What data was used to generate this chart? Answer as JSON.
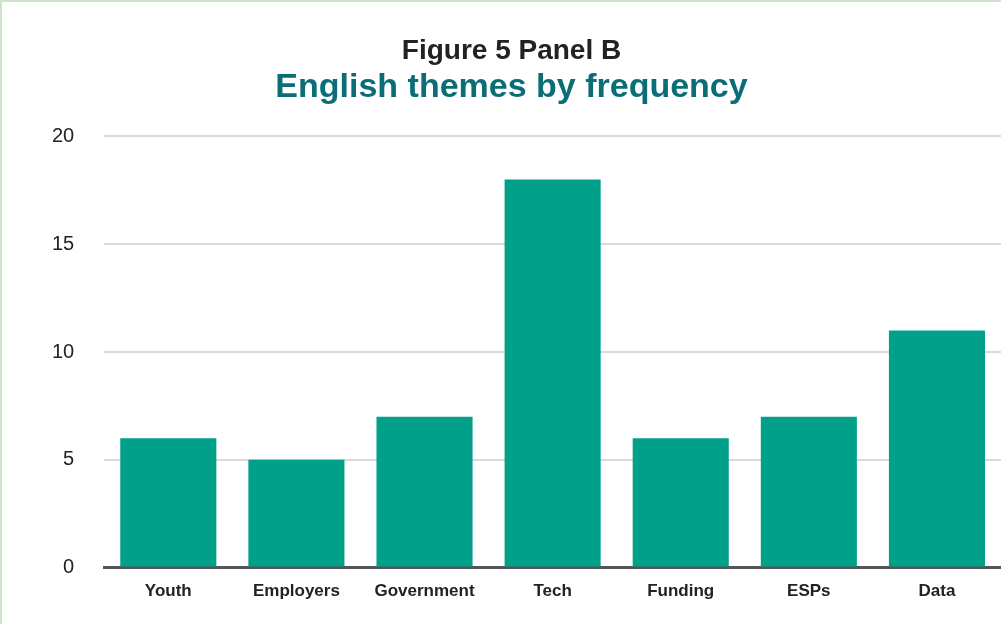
{
  "chart_data": {
    "type": "bar",
    "title": "Figure 5 Panel B",
    "subtitle": "English themes by frequency",
    "categories": [
      "Youth",
      "Employers",
      "Government",
      "Tech",
      "Funding",
      "ESPs",
      "Data"
    ],
    "values": [
      6,
      5,
      7,
      18,
      6,
      7,
      11
    ],
    "color": "#00a08a",
    "ylim": [
      0,
      20
    ],
    "yticks": [
      0,
      5,
      10,
      15,
      20
    ],
    "grid": "y"
  }
}
